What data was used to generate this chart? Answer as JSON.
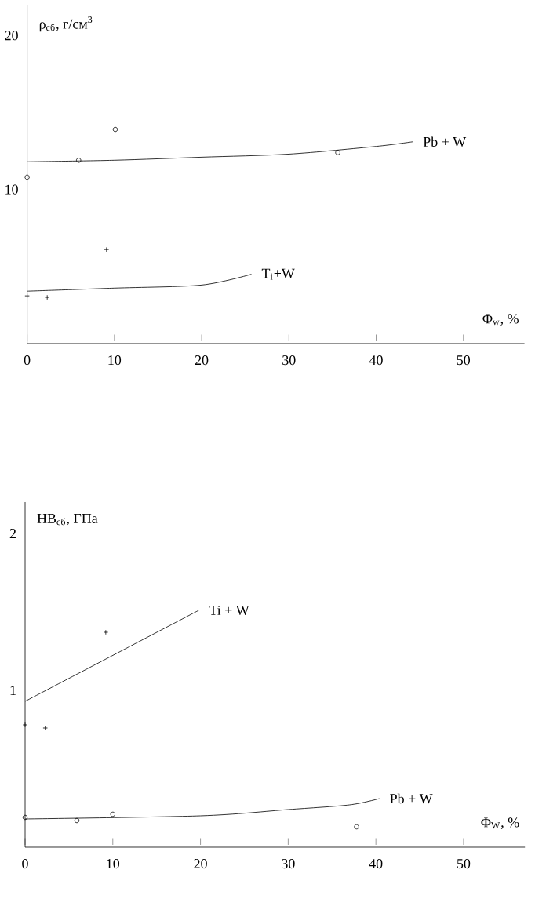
{
  "chart_data": [
    {
      "type": "line",
      "ylabel": "ρ$_{сб}$, г/см$^{3}$",
      "xlabel": "Φ$_{w}$, %",
      "xlim": [
        0,
        57
      ],
      "ylim": [
        0,
        22
      ],
      "xticks": [
        0,
        10,
        20,
        30,
        40,
        50
      ],
      "yticks": [
        10,
        20
      ],
      "marker": "none",
      "series": [
        {
          "name": "Pb + W",
          "color": "#000000",
          "x": [
            0,
            10,
            20,
            30,
            40,
            44.2
          ],
          "values": [
            11.8,
            11.9,
            12.1,
            12.3,
            12.8,
            13.1
          ]
        },
        {
          "type": "scatter",
          "marker": "circle",
          "color": "#000000",
          "x": [
            0,
            5.9,
            10.1,
            35.6
          ],
          "values": [
            10.8,
            11.9,
            13.9,
            12.4
          ]
        },
        {
          "name": "T$_{i}$+W",
          "color": "#000000",
          "x": [
            0,
            10,
            20,
            25.7
          ],
          "values": [
            3.4,
            3.6,
            3.8,
            4.5
          ]
        },
        {
          "type": "scatter",
          "marker": "cross",
          "color": "#000000",
          "x": [
            0,
            2.3,
            9.1
          ],
          "values": [
            3.1,
            3.0,
            6.1
          ]
        }
      ]
    },
    {
      "type": "line",
      "ylabel": "HB$_{сб}$, ГПа",
      "xlabel": "Φ$_{W}$, %",
      "xlim": [
        0,
        57
      ],
      "ylim": [
        0,
        2.2
      ],
      "xticks": [
        0,
        10,
        20,
        30,
        40,
        50
      ],
      "yticks": [
        1,
        2
      ],
      "marker": "none",
      "series": [
        {
          "name": "Ti + W",
          "color": "#000000",
          "x": [
            0,
            19.8
          ],
          "values": [
            0.93,
            1.51
          ]
        },
        {
          "type": "scatter",
          "marker": "cross",
          "color": "#000000",
          "x": [
            0,
            2.3,
            9.2
          ],
          "values": [
            0.78,
            0.76,
            1.37
          ]
        },
        {
          "name": "Pb + W",
          "color": "#000000",
          "x": [
            0,
            20,
            30,
            37,
            40.4
          ],
          "values": [
            0.18,
            0.2,
            0.24,
            0.27,
            0.31
          ]
        },
        {
          "type": "scatter",
          "marker": "circle",
          "color": "#000000",
          "x": [
            0,
            5.9,
            10,
            37.8
          ],
          "values": [
            0.19,
            0.17,
            0.21,
            0.13
          ]
        }
      ]
    }
  ]
}
